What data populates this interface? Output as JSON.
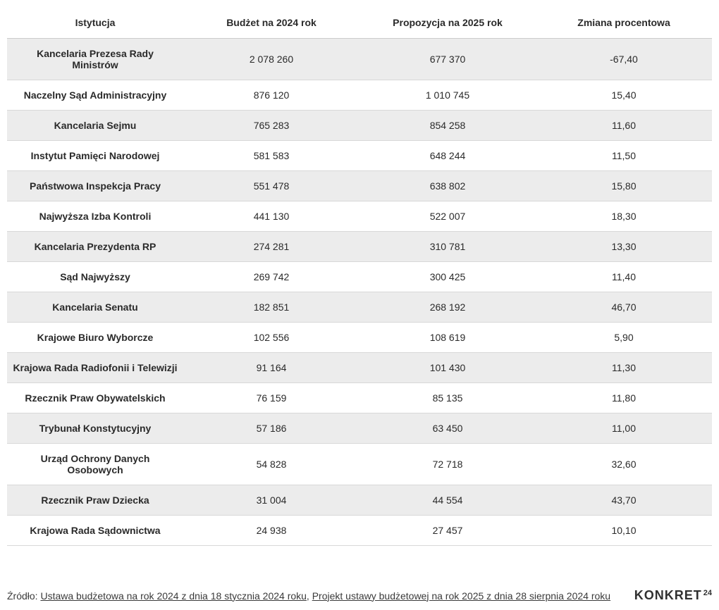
{
  "table": {
    "type": "table",
    "background_color": "#ffffff",
    "row_colors": {
      "odd": "#ececec",
      "even": "#ffffff"
    },
    "border_color": "#d8d8d8",
    "header_border_color": "#cccccc",
    "text_color": "#2a2a2a",
    "font_size": 14,
    "header_font_weight": 700,
    "institution_font_weight": 700,
    "column_widths_pct": [
      25,
      25,
      25,
      25
    ],
    "alignment": [
      "center",
      "center",
      "center",
      "center"
    ],
    "columns": [
      {
        "key": "institution",
        "label": "Istytucja"
      },
      {
        "key": "budget_2024",
        "label": "Budżet na 2024 rok"
      },
      {
        "key": "proposal_2025",
        "label": "Propozycja na 2025 rok"
      },
      {
        "key": "pct_change",
        "label": "Zmiana procentowa"
      }
    ],
    "rows": [
      {
        "institution": "Kancelaria Prezesa Rady Ministrów",
        "budget_2024": "2 078 260",
        "proposal_2025": "677 370",
        "pct_change": "-67,40"
      },
      {
        "institution": "Naczelny Sąd Administracyjny",
        "budget_2024": "876 120",
        "proposal_2025": "1 010 745",
        "pct_change": "15,40"
      },
      {
        "institution": "Kancelaria Sejmu",
        "budget_2024": "765 283",
        "proposal_2025": "854 258",
        "pct_change": "11,60"
      },
      {
        "institution": "Instytut Pamięci Narodowej",
        "budget_2024": "581 583",
        "proposal_2025": "648 244",
        "pct_change": "11,50"
      },
      {
        "institution": "Państwowa Inspekcja Pracy",
        "budget_2024": "551 478",
        "proposal_2025": "638 802",
        "pct_change": "15,80"
      },
      {
        "institution": "Najwyższa Izba Kontroli",
        "budget_2024": "441 130",
        "proposal_2025": "522 007",
        "pct_change": "18,30"
      },
      {
        "institution": "Kancelaria Prezydenta RP",
        "budget_2024": "274 281",
        "proposal_2025": "310 781",
        "pct_change": "13,30"
      },
      {
        "institution": "Sąd Najwyższy",
        "budget_2024": "269 742",
        "proposal_2025": "300 425",
        "pct_change": "11,40"
      },
      {
        "institution": "Kancelaria Senatu",
        "budget_2024": "182 851",
        "proposal_2025": "268 192",
        "pct_change": "46,70"
      },
      {
        "institution": "Krajowe Biuro Wyborcze",
        "budget_2024": "102 556",
        "proposal_2025": "108 619",
        "pct_change": "5,90"
      },
      {
        "institution": "Krajowa Rada Radiofonii i Telewizji",
        "budget_2024": "91 164",
        "proposal_2025": "101 430",
        "pct_change": "11,30"
      },
      {
        "institution": "Rzecznik Praw Obywatelskich",
        "budget_2024": "76 159",
        "proposal_2025": "85 135",
        "pct_change": "11,80"
      },
      {
        "institution": "Trybunał Konstytucyjny",
        "budget_2024": "57 186",
        "proposal_2025": "63 450",
        "pct_change": "11,00"
      },
      {
        "institution": "Urząd Ochrony Danych Osobowych",
        "budget_2024": "54 828",
        "proposal_2025": "72 718",
        "pct_change": "32,60"
      },
      {
        "institution": "Rzecznik Praw Dziecka",
        "budget_2024": "31 004",
        "proposal_2025": "44 554",
        "pct_change": "43,70"
      },
      {
        "institution": "Krajowa Rada Sądownictwa",
        "budget_2024": "24 938",
        "proposal_2025": "27 457",
        "pct_change": "10,10"
      }
    ]
  },
  "footer": {
    "prefix": "Źródło: ",
    "link1_text": "Ustawa budżetowa na rok 2024 z dnia 18 stycznia 2024 roku",
    "separator": ", ",
    "link2_text": "Projekt ustawy budżetowej na rok 2025 z dnia 28 sierpnia 2024 roku",
    "font_size": 14,
    "text_color": "#3a3a3a",
    "link_color": "#3a3a3a"
  },
  "logo": {
    "main": "KONKRET",
    "sup": "24",
    "color": "#303030",
    "main_fontsize": 18,
    "sup_fontsize": 11,
    "font_weight": 800
  }
}
